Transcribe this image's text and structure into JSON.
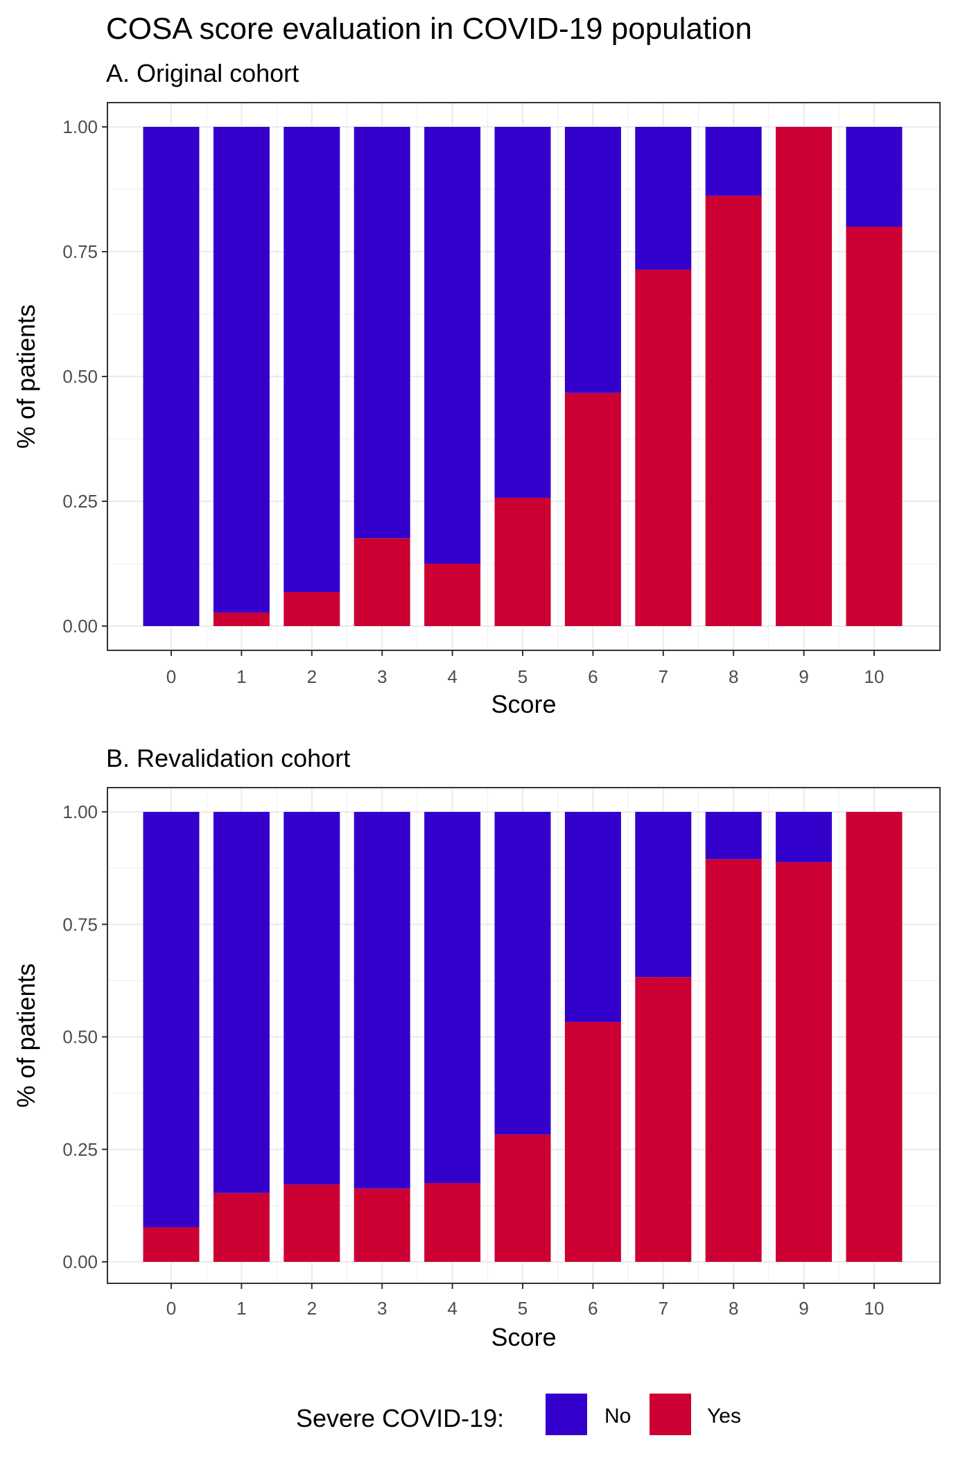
{
  "title": "COSA score evaluation in COVID-19 population",
  "legend": {
    "title": "Severe COVID-19:",
    "items": [
      {
        "label": "No",
        "color": "#3300CC"
      },
      {
        "label": "Yes",
        "color": "#CC0033"
      }
    ]
  },
  "chart_data": [
    {
      "type": "bar",
      "stacked": true,
      "title": "A. Original cohort",
      "xlabel": "Score",
      "ylabel": "% of patients",
      "categories": [
        "0",
        "1",
        "2",
        "3",
        "4",
        "5",
        "6",
        "7",
        "8",
        "9",
        "10"
      ],
      "ylim": [
        0,
        1
      ],
      "yticks": [
        "0.00",
        "0.25",
        "0.50",
        "0.75",
        "1.00"
      ],
      "grid": true,
      "series": [
        {
          "name": "Yes",
          "color": "#CC0033",
          "values": [
            0.0,
            0.027,
            0.068,
            0.176,
            0.125,
            0.257,
            0.467,
            0.714,
            0.862,
            1.0,
            0.8
          ]
        },
        {
          "name": "No",
          "color": "#3300CC",
          "values": [
            1.0,
            0.973,
            0.932,
            0.824,
            0.875,
            0.743,
            0.533,
            0.286,
            0.138,
            0.0,
            0.2
          ]
        }
      ]
    },
    {
      "type": "bar",
      "stacked": true,
      "title": "B. Revalidation cohort",
      "xlabel": "Score",
      "ylabel": "% of patients",
      "categories": [
        "0",
        "1",
        "2",
        "3",
        "4",
        "5",
        "6",
        "7",
        "8",
        "9",
        "10"
      ],
      "ylim": [
        0,
        1
      ],
      "yticks": [
        "0.00",
        "0.25",
        "0.50",
        "0.75",
        "1.00"
      ],
      "grid": true,
      "series": [
        {
          "name": "Yes",
          "color": "#CC0033",
          "values": [
            0.077,
            0.153,
            0.172,
            0.163,
            0.175,
            0.283,
            0.533,
            0.633,
            0.895,
            0.888,
            1.0
          ]
        },
        {
          "name": "No",
          "color": "#3300CC",
          "values": [
            0.923,
            0.847,
            0.828,
            0.837,
            0.825,
            0.717,
            0.467,
            0.367,
            0.105,
            0.112,
            0.0
          ]
        }
      ]
    }
  ]
}
